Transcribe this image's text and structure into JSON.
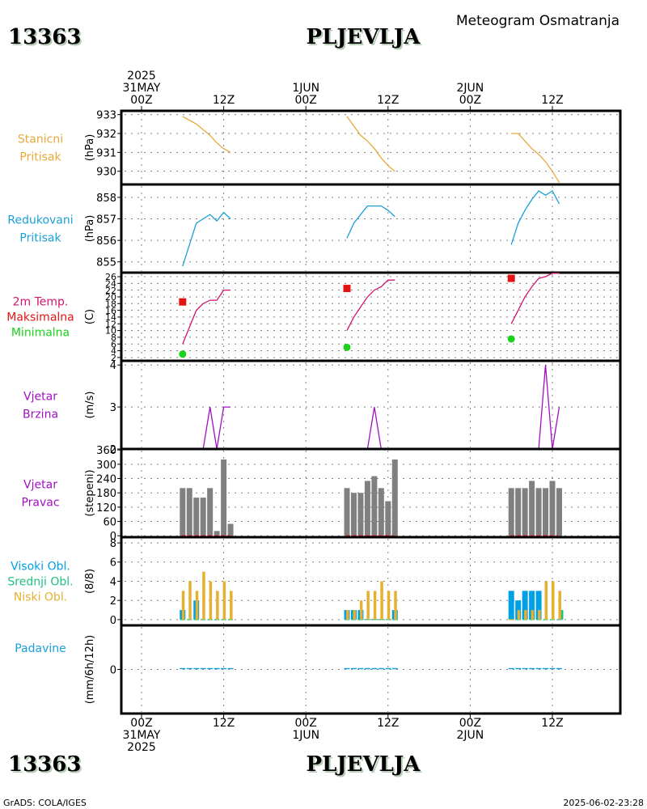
{
  "header": {
    "station_id": "13363",
    "station_name": "PLJEVLJA",
    "product": "Meteogram Osmatranja"
  },
  "footer": {
    "station_id": "13363",
    "station_name": "PLJEVLJA",
    "credit": "GrADS: COLA/IGES",
    "timestamp": "2025-06-02-23:28"
  },
  "colors": {
    "station_pressure": "#e6a83a",
    "reduced_pressure": "#1aa0d8",
    "temp_line": "#d01470",
    "temp_max": "#e41414",
    "temp_min": "#1ad21a",
    "wind": "#a010c0",
    "wind_dir_bar": "#808080",
    "wind_dir_zero": "#e41414",
    "cloud_high": "#00a0e6",
    "cloud_mid": "#20c080",
    "cloud_low": "#e6b030",
    "precip": "#1aa0d8"
  },
  "chart_data": {
    "type": "line",
    "title": "Meteogram Osmatranja - 13363 PLJEVLJA",
    "x_axis": {
      "unit": "hours since 2025-05-31 00Z",
      "range": [
        -3,
        70
      ],
      "ticks": [
        {
          "hour": 0,
          "top": [
            "2025",
            "31MAY",
            "00Z"
          ],
          "bottom": [
            "00Z",
            "31MAY",
            "2025"
          ]
        },
        {
          "hour": 12,
          "top": [
            "12Z"
          ],
          "bottom": [
            "12Z"
          ]
        },
        {
          "hour": 24,
          "top": [
            "1JUN",
            "00Z"
          ],
          "bottom": [
            "00Z",
            "1JUN"
          ]
        },
        {
          "hour": 36,
          "top": [
            "12Z"
          ],
          "bottom": [
            "12Z"
          ]
        },
        {
          "hour": 48,
          "top": [
            "2JUN",
            "00Z"
          ],
          "bottom": [
            "00Z",
            "2JUN"
          ]
        },
        {
          "hour": 60,
          "top": [
            "12Z"
          ],
          "bottom": [
            "12Z"
          ]
        }
      ]
    },
    "panels": [
      {
        "id": "station_pressure",
        "labels": [
          "Stanicni",
          "Pritisak"
        ],
        "label_colors": [
          "station_pressure",
          "station_pressure"
        ],
        "unit": "(hPa)",
        "ylim": [
          929.3,
          933.2
        ],
        "yticks": [
          930,
          931,
          932,
          933
        ],
        "series": [
          {
            "name": "Stanicni Pritisak",
            "kind": "line",
            "color": "station_pressure",
            "x": [
              6,
              7,
              8,
              9,
              10,
              11,
              12,
              13,
              30,
              31,
              32,
              33,
              34,
              35,
              36,
              37,
              54,
              55,
              56,
              57,
              58,
              59,
              60,
              61
            ],
            "segments": [
              [
                0,
                8
              ],
              [
                8,
                16
              ],
              [
                16,
                24
              ]
            ],
            "values": [
              932.9,
              932.7,
              932.5,
              932.2,
              931.9,
              931.5,
              931.2,
              931.0,
              932.9,
              932.4,
              931.9,
              931.6,
              931.2,
              930.7,
              930.3,
              930.0,
              932.0,
              932.0,
              931.6,
              931.2,
              930.9,
              930.5,
              930.0,
              929.4
            ]
          }
        ]
      },
      {
        "id": "reduced_pressure",
        "labels": [
          "Redukovani",
          "Pritisak"
        ],
        "label_colors": [
          "reduced_pressure",
          "reduced_pressure"
        ],
        "unit": "(hPa)",
        "ylim": [
          854.5,
          858.6
        ],
        "yticks": [
          855,
          856,
          857,
          858
        ],
        "series": [
          {
            "name": "Redukovani Pritisak",
            "kind": "line",
            "color": "reduced_pressure",
            "x": [
              6,
              7,
              8,
              9,
              10,
              11,
              12,
              13,
              30,
              31,
              32,
              33,
              34,
              35,
              36,
              37,
              54,
              55,
              56,
              57,
              58,
              59,
              60,
              61
            ],
            "segments": [
              [
                0,
                8
              ],
              [
                8,
                16
              ],
              [
                16,
                24
              ]
            ],
            "values": [
              854.8,
              855.8,
              856.8,
              857.0,
              857.2,
              856.9,
              857.3,
              857.0,
              856.1,
              856.8,
              857.2,
              857.6,
              857.6,
              857.6,
              857.4,
              857.1,
              855.8,
              856.8,
              857.4,
              857.9,
              858.3,
              858.1,
              858.3,
              857.7
            ]
          }
        ]
      },
      {
        "id": "temperature",
        "labels": [
          "2m Temp.",
          "Maksimalna",
          "Minimalna"
        ],
        "label_colors": [
          "temp_line",
          "temp_max",
          "temp_min"
        ],
        "unit": "(C)",
        "ylim": [
          1,
          27.2
        ],
        "yticks": [
          2,
          4,
          6,
          8,
          10,
          12,
          14,
          16,
          18,
          20,
          22,
          24,
          26
        ],
        "series": [
          {
            "name": "2m Temp.",
            "kind": "line",
            "color": "temp_line",
            "x": [
              6,
              7,
              8,
              9,
              10,
              11,
              12,
              13,
              30,
              31,
              32,
              33,
              34,
              35,
              36,
              37,
              54,
              55,
              56,
              57,
              58,
              59,
              60,
              61
            ],
            "segments": [
              [
                0,
                8
              ],
              [
                8,
                16
              ],
              [
                16,
                24
              ]
            ],
            "values": [
              6,
              11,
              16,
              18,
              19,
              19,
              22,
              22,
              10,
              14,
              17,
              20,
              22,
              23,
              25,
              25,
              12,
              16,
              20,
              23,
              25.5,
              26,
              27,
              27
            ]
          },
          {
            "name": "Maksimalna",
            "kind": "square",
            "color": "temp_max",
            "x": [
              6,
              30,
              54
            ],
            "values": [
              18.5,
              22.5,
              25.5
            ]
          },
          {
            "name": "Minimalna",
            "kind": "circle",
            "color": "temp_min",
            "x": [
              6,
              30,
              54
            ],
            "values": [
              3,
              5,
              7.5
            ]
          }
        ]
      },
      {
        "id": "wind_speed",
        "labels": [
          "Vjetar",
          "Brzina"
        ],
        "label_colors": [
          "wind",
          "wind"
        ],
        "unit": "(m/s)",
        "ylim": [
          2,
          4.1
        ],
        "yticks": [
          2,
          3,
          4
        ],
        "series": [
          {
            "name": "Vjetar Brzina",
            "kind": "line",
            "color": "wind",
            "x": [
              6,
              7,
              8,
              9,
              10,
              11,
              12,
              13,
              30,
              31,
              32,
              33,
              34,
              35,
              36,
              37,
              54,
              55,
              56,
              57,
              58,
              59,
              60,
              61
            ],
            "segments": [
              [
                0,
                8
              ],
              [
                8,
                16
              ],
              [
                16,
                24
              ]
            ],
            "values": [
              2,
              2,
              2,
              2,
              3,
              2,
              3,
              3,
              2,
              2,
              2,
              2,
              3,
              2,
              2,
              2,
              2,
              2,
              2,
              2,
              2,
              4,
              2,
              3
            ]
          }
        ]
      },
      {
        "id": "wind_direction",
        "labels": [
          "Vjetar",
          "Pravac"
        ],
        "label_colors": [
          "wind",
          "wind"
        ],
        "unit": "(stepeni)",
        "ylim": [
          -6,
          364
        ],
        "yticks": [
          0,
          60,
          120,
          180,
          240,
          300,
          360
        ],
        "series": [
          {
            "name": "Vjetar Pravac",
            "kind": "bar",
            "color": "wind_dir_bar",
            "x": [
              6,
              7,
              8,
              9,
              10,
              11,
              12,
              13,
              30,
              31,
              32,
              33,
              34,
              35,
              36,
              37,
              54,
              55,
              56,
              57,
              58,
              59,
              60,
              61
            ],
            "values": [
              200,
              200,
              160,
              160,
              200,
              20,
              320,
              50,
              200,
              180,
              180,
              230,
              250,
              200,
              145,
              320,
              200,
              200,
              200,
              230,
              200,
              200,
              230,
              200
            ]
          }
        ]
      },
      {
        "id": "clouds",
        "labels": [
          "Visoki Obl.",
          "Srednji Obl.",
          "Niski Obl."
        ],
        "label_colors": [
          "cloud_high",
          "cloud_mid",
          "cloud_low"
        ],
        "unit": "(8/8)",
        "ylim": [
          -0.6,
          8.6
        ],
        "yticks": [
          0,
          2,
          4,
          6,
          8
        ],
        "series": [
          {
            "name": "Visoki Obl.",
            "kind": "bar",
            "color": "cloud_high",
            "x": [
              6,
              7,
              8,
              9,
              10,
              11,
              12,
              13,
              30,
              31,
              32,
              33,
              34,
              35,
              36,
              37,
              54,
              55,
              56,
              57,
              58,
              59,
              60,
              61
            ],
            "values": [
              1,
              0,
              2,
              0,
              0,
              0,
              0,
              0,
              1,
              1,
              1,
              0,
              0,
              0,
              0,
              1,
              3,
              2,
              3,
              3,
              3,
              0,
              0,
              0
            ]
          },
          {
            "name": "Srednji Obl.",
            "kind": "bar",
            "color": "cloud_mid",
            "x": [
              6,
              7,
              8,
              9,
              10,
              11,
              12,
              13,
              30,
              31,
              32,
              33,
              34,
              35,
              36,
              37,
              54,
              55,
              56,
              57,
              58,
              59,
              60,
              61
            ],
            "values": [
              0,
              0,
              0,
              0,
              0,
              0,
              0,
              0,
              0,
              0,
              0,
              0,
              0,
              0,
              0,
              0,
              0,
              0,
              0,
              0,
              0,
              0,
              0,
              1
            ]
          },
          {
            "name": "Niski Obl.",
            "kind": "bar",
            "color": "cloud_low",
            "x": [
              6,
              7,
              8,
              9,
              10,
              11,
              12,
              13,
              30,
              31,
              32,
              33,
              34,
              35,
              36,
              37,
              54,
              55,
              56,
              57,
              58,
              59,
              60,
              61
            ],
            "values": [
              3,
              4,
              3,
              5,
              4,
              3,
              4,
              3,
              1,
              1,
              2,
              3,
              3,
              4,
              3,
              3,
              0,
              1,
              1,
              1,
              1,
              4,
              4,
              3
            ]
          }
        ]
      },
      {
        "id": "precipitation",
        "labels": [
          "Padavine"
        ],
        "label_colors": [
          "precip"
        ],
        "unit": "(mm/6h/12h)",
        "ylim": [
          -1,
          1
        ],
        "yticks": [
          0
        ],
        "series": [
          {
            "name": "Padavine",
            "kind": "bar",
            "color": "precip",
            "x": [
              6,
              7,
              8,
              9,
              10,
              11,
              12,
              13,
              30,
              31,
              32,
              33,
              34,
              35,
              36,
              37,
              54,
              55,
              56,
              57,
              58,
              59,
              60,
              61
            ],
            "values": [
              0,
              0,
              0,
              0,
              0,
              0,
              0,
              0,
              0,
              0,
              0,
              0,
              0,
              0,
              0,
              0,
              0,
              0,
              0,
              0,
              0,
              0,
              0,
              0
            ]
          }
        ]
      }
    ],
    "grid": true
  }
}
